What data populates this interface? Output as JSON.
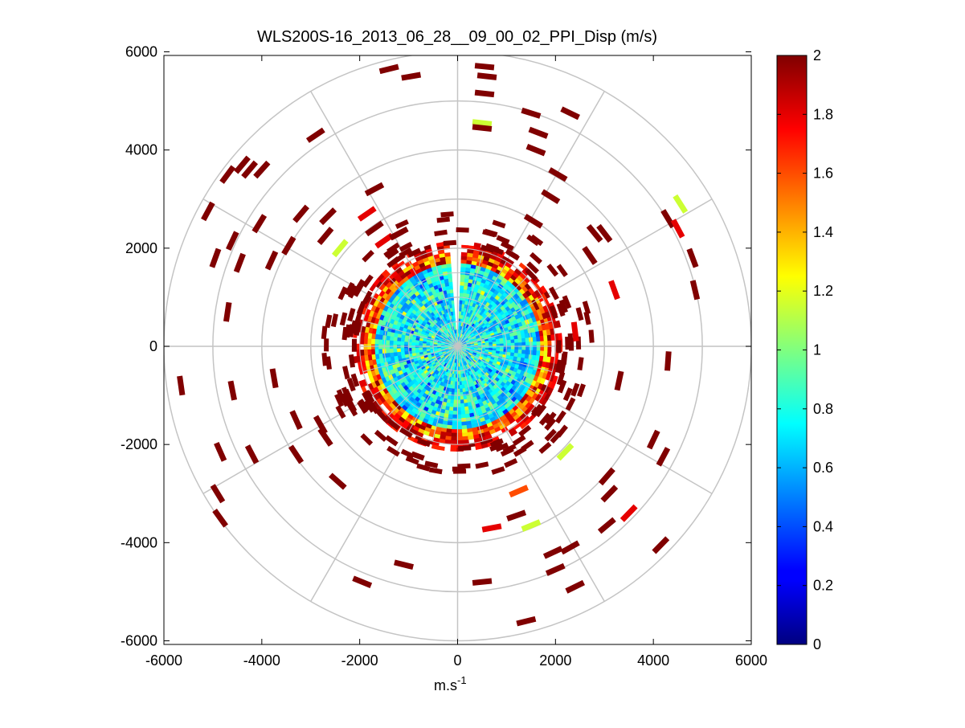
{
  "chart_data": {
    "type": "heatmap",
    "subtype": "polar-ppi",
    "title": "WLS200S-16_2013_06_28__09_00_02_PPI_Disp (m/s)",
    "xlabel": "m.s",
    "xlabel_superscript": "-1",
    "ylabel": "",
    "xlim": [
      -6000,
      6000
    ],
    "ylim": [
      -6000,
      6000
    ],
    "xticks": [
      -6000,
      -4000,
      -2000,
      0,
      2000,
      4000,
      6000
    ],
    "yticks": [
      6000,
      4000,
      2000,
      0,
      -2000,
      -4000,
      -6000
    ],
    "xtick_labels": [
      "-6000",
      "-4000",
      "-2000",
      "0",
      "2000",
      "4000",
      "6000"
    ],
    "ytick_labels": [
      "6000",
      "4000",
      "2000",
      "0",
      "-2000",
      "-4000",
      "-6000"
    ],
    "polar_grid_radii": [
      1000,
      2000,
      3000,
      4000,
      5000,
      6000
    ],
    "polar_grid_spoke_angles_deg": [
      0,
      30,
      60,
      90,
      120,
      150,
      180,
      210,
      240,
      270,
      300,
      330
    ],
    "dense_region": {
      "max_range": 2000,
      "typical_range_values": [
        0.5,
        1.0
      ],
      "edge_values": [
        1.2,
        2.0
      ],
      "missing_sector_deg": [
        86,
        93
      ]
    },
    "colorbar": {
      "min": 0,
      "max": 2,
      "ticks": [
        2,
        1.8,
        1.6,
        1.4,
        1.2,
        1,
        0.8,
        0.6,
        0.4,
        0.2,
        0
      ],
      "tick_labels": [
        "2",
        "1.8",
        "1.6",
        "1.4",
        "1.2",
        "1",
        "0.8",
        "0.6",
        "0.4",
        "0.2",
        "0"
      ],
      "colormap": "jet",
      "levels": 64
    },
    "sparse_returns": [
      {
        "x": -1400,
        "y": 5650,
        "v": 2
      },
      {
        "x": -950,
        "y": 5500,
        "v": 2
      },
      {
        "x": 550,
        "y": 5700,
        "v": 2
      },
      {
        "x": 600,
        "y": 5500,
        "v": 2
      },
      {
        "x": 550,
        "y": 5150,
        "v": 2
      },
      {
        "x": 500,
        "y": 4550,
        "v": 1.15
      },
      {
        "x": 500,
        "y": 4450,
        "v": 2
      },
      {
        "x": 1500,
        "y": 4750,
        "v": 2
      },
      {
        "x": 2300,
        "y": 4750,
        "v": 2
      },
      {
        "x": 1650,
        "y": 4350,
        "v": 2
      },
      {
        "x": 1600,
        "y": 4000,
        "v": 2
      },
      {
        "x": 2050,
        "y": 3500,
        "v": 2
      },
      {
        "x": 1900,
        "y": 3050,
        "v": 2
      },
      {
        "x": 1550,
        "y": 2550,
        "v": 2
      },
      {
        "x": 4300,
        "y": 2600,
        "v": 2
      },
      {
        "x": 4550,
        "y": 2900,
        "v": 1.15
      },
      {
        "x": 4500,
        "y": 2400,
        "v": 1.8
      },
      {
        "x": 4800,
        "y": 1800,
        "v": 2
      },
      {
        "x": 4850,
        "y": 1150,
        "v": 2
      },
      {
        "x": 3200,
        "y": 1150,
        "v": 1.8
      },
      {
        "x": 3000,
        "y": 2300,
        "v": 2
      },
      {
        "x": 2800,
        "y": 2300,
        "v": 2
      },
      {
        "x": 2700,
        "y": 1850,
        "v": 2
      },
      {
        "x": 2400,
        "y": 300,
        "v": 1.8
      },
      {
        "x": 4300,
        "y": -300,
        "v": 2
      },
      {
        "x": 3300,
        "y": -700,
        "v": 2
      },
      {
        "x": 4000,
        "y": -1900,
        "v": 2
      },
      {
        "x": 4200,
        "y": -2250,
        "v": 2
      },
      {
        "x": 3050,
        "y": -2650,
        "v": 2
      },
      {
        "x": 3100,
        "y": -3000,
        "v": 2
      },
      {
        "x": 3500,
        "y": -3400,
        "v": 1.8
      },
      {
        "x": 4150,
        "y": -4050,
        "v": 2
      },
      {
        "x": 3050,
        "y": -3650,
        "v": 2
      },
      {
        "x": 2200,
        "y": -2150,
        "v": 1.15
      },
      {
        "x": 1250,
        "y": -2950,
        "v": 1.6
      },
      {
        "x": 1500,
        "y": -3650,
        "v": 1.15
      },
      {
        "x": 1200,
        "y": -3450,
        "v": 2
      },
      {
        "x": 700,
        "y": -3700,
        "v": 1.8
      },
      {
        "x": 1950,
        "y": -4200,
        "v": 2
      },
      {
        "x": 2300,
        "y": -4100,
        "v": 2
      },
      {
        "x": 2000,
        "y": -4550,
        "v": 2
      },
      {
        "x": 2400,
        "y": -4900,
        "v": 2
      },
      {
        "x": 500,
        "y": -4800,
        "v": 2
      },
      {
        "x": 1400,
        "y": -5600,
        "v": 2
      },
      {
        "x": -1100,
        "y": -4450,
        "v": 2
      },
      {
        "x": -1950,
        "y": -4800,
        "v": 2
      },
      {
        "x": -2450,
        "y": -2750,
        "v": 2
      },
      {
        "x": -3300,
        "y": -2200,
        "v": 2
      },
      {
        "x": -4200,
        "y": -2200,
        "v": 2
      },
      {
        "x": -4850,
        "y": -2150,
        "v": 2
      },
      {
        "x": -4900,
        "y": -3000,
        "v": 2
      },
      {
        "x": -4850,
        "y": -3500,
        "v": 2
      },
      {
        "x": -5650,
        "y": -800,
        "v": 2
      },
      {
        "x": -4600,
        "y": -900,
        "v": 2
      },
      {
        "x": -3750,
        "y": -650,
        "v": 2
      },
      {
        "x": -3300,
        "y": -1500,
        "v": 2
      },
      {
        "x": -2800,
        "y": -1600,
        "v": 2
      },
      {
        "x": -2200,
        "y": -1150,
        "v": 2
      },
      {
        "x": -2700,
        "y": -1850,
        "v": 2
      },
      {
        "x": -5100,
        "y": 2750,
        "v": 2
      },
      {
        "x": -4700,
        "y": 3500,
        "v": 2
      },
      {
        "x": -4400,
        "y": 3700,
        "v": 2
      },
      {
        "x": -4250,
        "y": 3600,
        "v": 2
      },
      {
        "x": -4000,
        "y": 3600,
        "v": 2
      },
      {
        "x": -2900,
        "y": 4300,
        "v": 2
      },
      {
        "x": -4950,
        "y": 1800,
        "v": 2
      },
      {
        "x": -4600,
        "y": 2150,
        "v": 2
      },
      {
        "x": -4450,
        "y": 1700,
        "v": 2
      },
      {
        "x": -4050,
        "y": 2500,
        "v": 2
      },
      {
        "x": -3800,
        "y": 1750,
        "v": 2
      },
      {
        "x": -3450,
        "y": 2050,
        "v": 2
      },
      {
        "x": -3200,
        "y": 2700,
        "v": 2
      },
      {
        "x": -2650,
        "y": 2650,
        "v": 2
      },
      {
        "x": -2700,
        "y": 2250,
        "v": 2
      },
      {
        "x": -2400,
        "y": 2000,
        "v": 1.15
      },
      {
        "x": -1850,
        "y": 2700,
        "v": 1.8
      },
      {
        "x": -1500,
        "y": 2150,
        "v": 1.8
      },
      {
        "x": -4700,
        "y": 700,
        "v": 2
      },
      {
        "x": -1700,
        "y": 2400,
        "v": 2
      },
      {
        "x": -1200,
        "y": 2300,
        "v": 2
      },
      {
        "x": -1700,
        "y": 3200,
        "v": 2
      }
    ]
  }
}
